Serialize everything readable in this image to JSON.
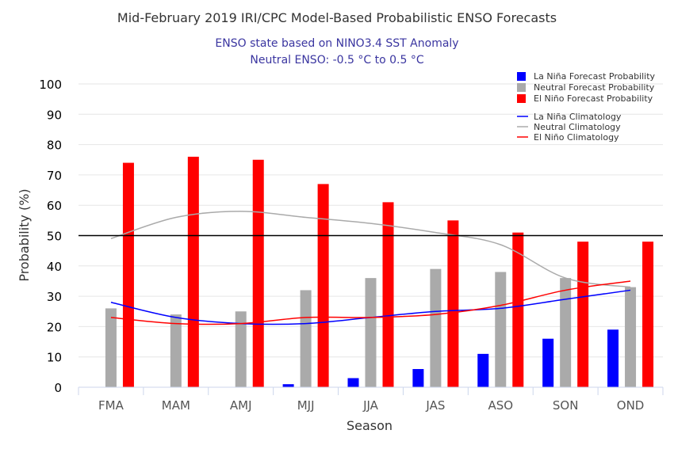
{
  "chart_data": {
    "type": "bar",
    "title": "Mid-February 2019 IRI/CPC Model-Based Probabilistic ENSO Forecasts",
    "subtitle_lines": [
      "ENSO state based on NINO3.4 SST Anomaly",
      "Neutral ENSO: -0.5 °C to 0.5 °C"
    ],
    "xlabel": "Season",
    "ylabel": "Probability (%)",
    "ylim": [
      0,
      100
    ],
    "yticks": [
      0,
      10,
      20,
      30,
      40,
      50,
      60,
      70,
      80,
      90,
      100
    ],
    "reference_line": 50,
    "grid": true,
    "legend_position": "top-right",
    "categories": [
      "FMA",
      "MAM",
      "AMJ",
      "MJJ",
      "JJA",
      "JAS",
      "ASO",
      "SON",
      "OND"
    ],
    "series": [
      {
        "name": "La Niña Forecast Probability",
        "kind": "bar",
        "color": "#0000ff",
        "values": [
          0,
          0,
          0,
          1,
          3,
          6,
          11,
          16,
          19
        ]
      },
      {
        "name": "Neutral Forecast Probability",
        "kind": "bar",
        "color": "#aaaaaa",
        "values": [
          26,
          24,
          25,
          32,
          36,
          39,
          38,
          36,
          33
        ]
      },
      {
        "name": "El Niño Forecast Probability",
        "kind": "bar",
        "color": "#ff0000",
        "values": [
          74,
          76,
          75,
          67,
          61,
          55,
          51,
          48,
          48
        ]
      },
      {
        "name": "La Niña Climatology",
        "kind": "line",
        "color": "#0000ff",
        "values": [
          28,
          23,
          21,
          21,
          23,
          25,
          26,
          29,
          32
        ]
      },
      {
        "name": "Neutral Climatology",
        "kind": "line",
        "color": "#aaaaaa",
        "values": [
          49,
          56,
          58,
          56,
          54,
          51,
          47,
          36,
          33
        ]
      },
      {
        "name": "El Niño Climatology",
        "kind": "line",
        "color": "#ff0000",
        "values": [
          23,
          21,
          21,
          23,
          23,
          24,
          27,
          32,
          35
        ]
      }
    ]
  }
}
